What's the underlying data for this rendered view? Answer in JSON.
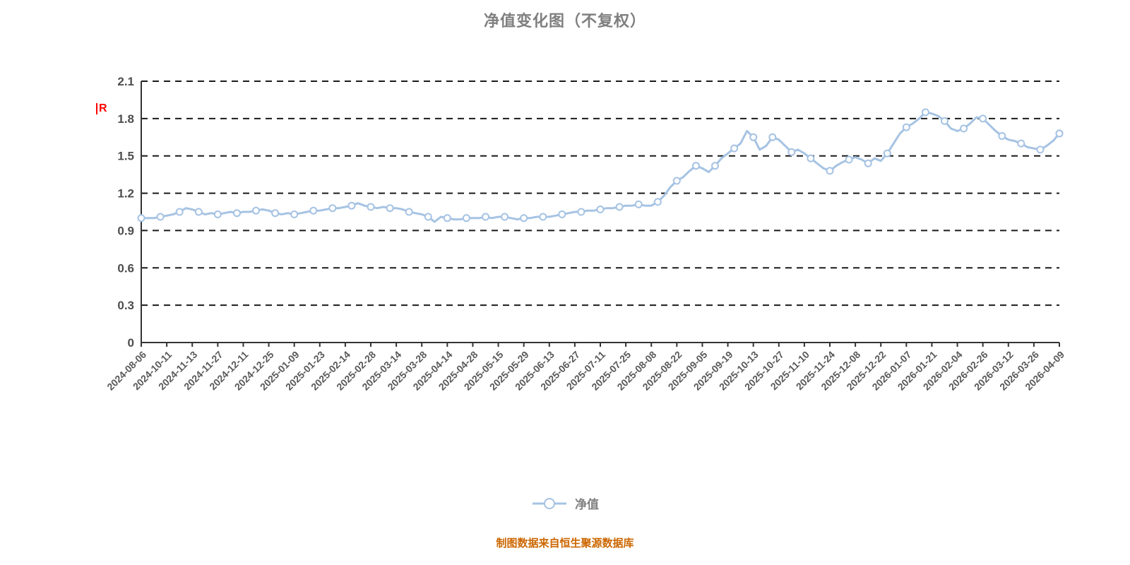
{
  "title": "净值变化图（不复权）",
  "annotation_r": "R",
  "legend": {
    "label": "净值"
  },
  "footer": "制图数据来自恒生聚源数据库",
  "colors": {
    "line": "#a6c3e3",
    "marker_fill": "#ffffff",
    "title": "#7f7f7f",
    "y_label": "#4d4d4d",
    "x_label": "#595959",
    "grid": "#1a1a1a",
    "axis": "#333333",
    "footer": "#cc6600",
    "annotation": "#ff0000",
    "legend_text": "#808080"
  },
  "chart_data": {
    "type": "line",
    "title": "净值变化图（不复权）",
    "series_name": "净值",
    "ylim": [
      0,
      2.1
    ],
    "y_ticks": [
      0,
      0.3,
      0.6,
      0.9,
      1.2,
      1.5,
      1.8,
      2.1
    ],
    "grid": "dashed-horizontal",
    "legend_position": "bottom-center",
    "x_tick_labels": [
      "2024-08-06",
      "2024-10-11",
      "2024-11-13",
      "2024-11-27",
      "2024-12-11",
      "2024-12-25",
      "2025-01-09",
      "2025-01-23",
      "2025-02-14",
      "2025-02-28",
      "2025-03-14",
      "2025-03-28",
      "2025-04-14",
      "2025-04-28",
      "2025-05-15",
      "2025-05-29",
      "2025-06-13",
      "2025-06-27",
      "2025-07-11",
      "2025-07-25",
      "2025-08-08",
      "2025-08-22",
      "2025-09-05",
      "2025-09-19",
      "2025-10-13",
      "2025-10-27",
      "2025-11-10",
      "2025-11-24",
      "2025-12-08",
      "2025-12-22",
      "2026-01-07",
      "2026-01-21",
      "2026-02-04",
      "2026-02-26",
      "2026-03-12",
      "2026-03-26",
      "2026-04-09"
    ],
    "points_per_tick_gap": 4,
    "marker_every": 3,
    "values": [
      1.0,
      1.0,
      1.0,
      1.01,
      1.02,
      1.03,
      1.05,
      1.08,
      1.07,
      1.05,
      1.03,
      1.04,
      1.03,
      1.04,
      1.05,
      1.04,
      1.05,
      1.05,
      1.06,
      1.07,
      1.06,
      1.04,
      1.03,
      1.04,
      1.03,
      1.04,
      1.05,
      1.06,
      1.06,
      1.07,
      1.08,
      1.08,
      1.09,
      1.1,
      1.12,
      1.1,
      1.09,
      1.08,
      1.09,
      1.08,
      1.08,
      1.07,
      1.05,
      1.04,
      1.03,
      1.01,
      0.97,
      1.01,
      1.0,
      0.99,
      0.99,
      1.0,
      1.0,
      1.0,
      1.01,
      1.0,
      1.01,
      1.01,
      1.0,
      0.99,
      1.0,
      1.0,
      1.01,
      1.01,
      1.01,
      1.02,
      1.03,
      1.04,
      1.05,
      1.05,
      1.06,
      1.06,
      1.07,
      1.08,
      1.08,
      1.09,
      1.1,
      1.1,
      1.11,
      1.1,
      1.1,
      1.13,
      1.18,
      1.25,
      1.3,
      1.33,
      1.38,
      1.42,
      1.4,
      1.37,
      1.42,
      1.48,
      1.52,
      1.56,
      1.6,
      1.7,
      1.65,
      1.55,
      1.58,
      1.65,
      1.63,
      1.58,
      1.53,
      1.55,
      1.52,
      1.48,
      1.44,
      1.4,
      1.38,
      1.42,
      1.45,
      1.47,
      1.49,
      1.47,
      1.44,
      1.48,
      1.46,
      1.52,
      1.6,
      1.68,
      1.73,
      1.76,
      1.8,
      1.85,
      1.84,
      1.82,
      1.78,
      1.72,
      1.7,
      1.72,
      1.76,
      1.81,
      1.8,
      1.75,
      1.7,
      1.66,
      1.63,
      1.62,
      1.6,
      1.57,
      1.56,
      1.55,
      1.58,
      1.62,
      1.68
    ]
  }
}
